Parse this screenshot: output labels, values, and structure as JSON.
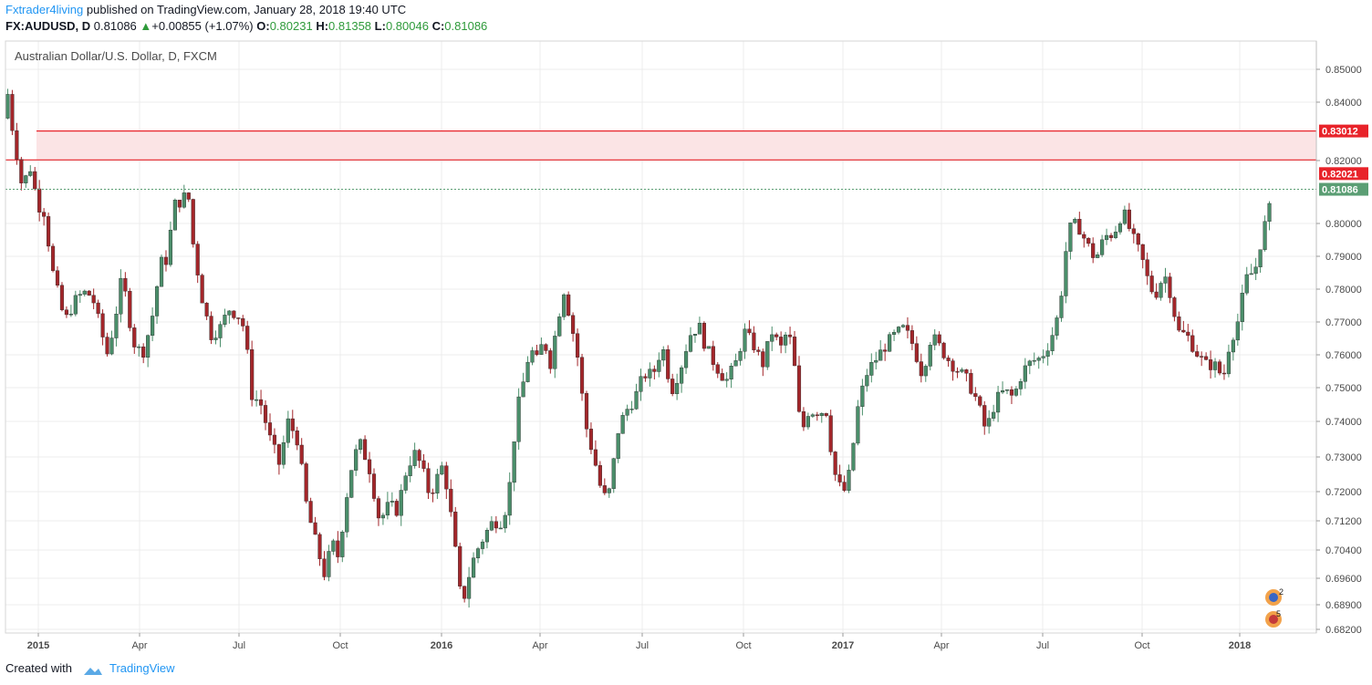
{
  "header": {
    "author": "Fxtrader4living",
    "published_text": "published on TradingView.com, January 28, 2018 19:40 UTC",
    "symbol": "FX:AUDUSD, D",
    "last": "0.81086",
    "change": "+0.00855 (+1.07%)",
    "change_arrow": "▲",
    "o_label": "O:",
    "o_value": "0.80231",
    "h_label": "H:",
    "h_value": "0.81358",
    "l_label": "L:",
    "l_value": "0.80046",
    "c_label": "C:",
    "c_value": "0.81086"
  },
  "footer": {
    "created_with": "Created with",
    "brand": "TradingView"
  },
  "colors": {
    "up": "#4a8e6a",
    "down": "#a3262a",
    "zone_line": "#e8232a",
    "zone_fill": "#fbe4e5",
    "price_badge": "#5b9e74",
    "grid": "#ececec"
  },
  "chart_data": {
    "type": "candlestick",
    "title": "Australian Dollar/U.S. Dollar, D, FXCM",
    "y_axis": {
      "min": 0.682,
      "max": 0.855,
      "ticks": [
        "0.85000",
        "0.84000",
        "0.82000",
        "0.80000",
        "0.79000",
        "0.78000",
        "0.77000",
        "0.76000",
        "0.75000",
        "0.74000",
        "0.73000",
        "0.72000",
        "0.71200",
        "0.70400",
        "0.69600",
        "0.68900",
        "0.68200"
      ]
    },
    "x_axis": {
      "ticks": [
        {
          "label": "2015",
          "bold": true
        },
        {
          "label": "Apr",
          "bold": false
        },
        {
          "label": "Jul",
          "bold": false
        },
        {
          "label": "Oct",
          "bold": false
        },
        {
          "label": "2016",
          "bold": true
        },
        {
          "label": "Apr",
          "bold": false
        },
        {
          "label": "Jul",
          "bold": false
        },
        {
          "label": "Oct",
          "bold": false
        },
        {
          "label": "2017",
          "bold": true
        },
        {
          "label": "Apr",
          "bold": false
        },
        {
          "label": "Jul",
          "bold": false
        },
        {
          "label": "Oct",
          "bold": false
        },
        {
          "label": "2018",
          "bold": true
        }
      ]
    },
    "zone": {
      "top": 0.83012,
      "bottom": 0.82021,
      "top_label": "0.83012",
      "bottom_label": "0.82021"
    },
    "last_price": {
      "value": 0.81086,
      "label": "0.81086"
    },
    "path_points": [
      [
        0,
        0.848
      ],
      [
        8,
        0.83
      ],
      [
        18,
        0.812
      ],
      [
        28,
        0.818
      ],
      [
        35,
        0.806
      ],
      [
        42,
        0.804
      ],
      [
        52,
        0.785
      ],
      [
        65,
        0.77
      ],
      [
        75,
        0.776
      ],
      [
        85,
        0.779
      ],
      [
        95,
        0.778
      ],
      [
        105,
        0.767
      ],
      [
        112,
        0.76
      ],
      [
        120,
        0.771
      ],
      [
        128,
        0.784
      ],
      [
        140,
        0.764
      ],
      [
        150,
        0.76
      ],
      [
        160,
        0.77
      ],
      [
        170,
        0.788
      ],
      [
        177,
        0.789
      ],
      [
        185,
        0.806
      ],
      [
        192,
        0.807
      ],
      [
        200,
        0.81
      ],
      [
        205,
        0.795
      ],
      [
        215,
        0.778
      ],
      [
        225,
        0.766
      ],
      [
        235,
        0.768
      ],
      [
        245,
        0.774
      ],
      [
        255,
        0.772
      ],
      [
        262,
        0.768
      ],
      [
        270,
        0.748
      ],
      [
        280,
        0.745
      ],
      [
        290,
        0.735
      ],
      [
        300,
        0.728
      ],
      [
        310,
        0.74
      ],
      [
        320,
        0.735
      ],
      [
        330,
        0.716
      ],
      [
        340,
        0.706
      ],
      [
        350,
        0.697
      ],
      [
        358,
        0.706
      ],
      [
        365,
        0.702
      ],
      [
        372,
        0.716
      ],
      [
        380,
        0.728
      ],
      [
        388,
        0.734
      ],
      [
        398,
        0.728
      ],
      [
        410,
        0.712
      ],
      [
        420,
        0.716
      ],
      [
        430,
        0.715
      ],
      [
        440,
        0.727
      ],
      [
        448,
        0.731
      ],
      [
        455,
        0.728
      ],
      [
        465,
        0.719
      ],
      [
        475,
        0.725
      ],
      [
        480,
        0.728
      ],
      [
        488,
        0.714
      ],
      [
        495,
        0.7
      ],
      [
        500,
        0.688
      ],
      [
        506,
        0.695
      ],
      [
        515,
        0.703
      ],
      [
        525,
        0.708
      ],
      [
        535,
        0.712
      ],
      [
        545,
        0.712
      ],
      [
        552,
        0.72
      ],
      [
        560,
        0.742
      ],
      [
        568,
        0.752
      ],
      [
        575,
        0.762
      ],
      [
        583,
        0.758
      ],
      [
        590,
        0.765
      ],
      [
        597,
        0.757
      ],
      [
        605,
        0.77
      ],
      [
        612,
        0.78
      ],
      [
        620,
        0.77
      ],
      [
        628,
        0.758
      ],
      [
        635,
        0.74
      ],
      [
        645,
        0.73
      ],
      [
        655,
        0.718
      ],
      [
        662,
        0.72
      ],
      [
        672,
        0.738
      ],
      [
        680,
        0.743
      ],
      [
        690,
        0.747
      ],
      [
        700,
        0.754
      ],
      [
        710,
        0.754
      ],
      [
        720,
        0.763
      ],
      [
        730,
        0.749
      ],
      [
        740,
        0.756
      ],
      [
        750,
        0.766
      ],
      [
        760,
        0.769
      ],
      [
        768,
        0.762
      ],
      [
        778,
        0.757
      ],
      [
        790,
        0.752
      ],
      [
        800,
        0.757
      ],
      [
        810,
        0.767
      ],
      [
        820,
        0.763
      ],
      [
        830,
        0.757
      ],
      [
        840,
        0.767
      ],
      [
        850,
        0.762
      ],
      [
        858,
        0.768
      ],
      [
        865,
        0.756
      ],
      [
        872,
        0.736
      ],
      [
        880,
        0.743
      ],
      [
        890,
        0.743
      ],
      [
        900,
        0.743
      ],
      [
        908,
        0.726
      ],
      [
        918,
        0.719
      ],
      [
        925,
        0.725
      ],
      [
        935,
        0.745
      ],
      [
        945,
        0.755
      ],
      [
        955,
        0.759
      ],
      [
        965,
        0.763
      ],
      [
        975,
        0.766
      ],
      [
        985,
        0.768
      ],
      [
        995,
        0.763
      ],
      [
        1005,
        0.754
      ],
      [
        1015,
        0.766
      ],
      [
        1025,
        0.762
      ],
      [
        1035,
        0.758
      ],
      [
        1045,
        0.755
      ],
      [
        1055,
        0.752
      ],
      [
        1065,
        0.746
      ],
      [
        1075,
        0.737
      ],
      [
        1085,
        0.746
      ],
      [
        1095,
        0.749
      ],
      [
        1105,
        0.747
      ],
      [
        1115,
        0.755
      ],
      [
        1125,
        0.758
      ],
      [
        1135,
        0.759
      ],
      [
        1145,
        0.764
      ],
      [
        1155,
        0.773
      ],
      [
        1165,
        0.798
      ],
      [
        1175,
        0.8
      ],
      [
        1185,
        0.794
      ],
      [
        1195,
        0.789
      ],
      [
        1205,
        0.796
      ],
      [
        1215,
        0.797
      ],
      [
        1225,
        0.804
      ],
      [
        1235,
        0.796
      ],
      [
        1245,
        0.79
      ],
      [
        1255,
        0.78
      ],
      [
        1262,
        0.779
      ],
      [
        1270,
        0.785
      ],
      [
        1278,
        0.778
      ],
      [
        1285,
        0.767
      ],
      [
        1295,
        0.766
      ],
      [
        1305,
        0.761
      ],
      [
        1315,
        0.757
      ],
      [
        1325,
        0.757
      ],
      [
        1335,
        0.753
      ],
      [
        1342,
        0.764
      ],
      [
        1350,
        0.769
      ],
      [
        1360,
        0.783
      ],
      [
        1370,
        0.786
      ],
      [
        1378,
        0.797
      ],
      [
        1386,
        0.805
      ],
      [
        1392,
        0.811
      ]
    ],
    "plot_x_start": 6,
    "plot_x_end": 1394,
    "candle_count": 280
  }
}
